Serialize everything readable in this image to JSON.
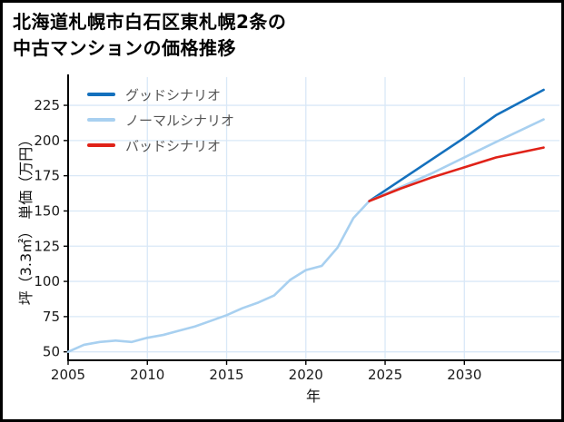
{
  "chart_data": {
    "type": "line",
    "title": "北海道札幌市白石区東札幌2条の中古マンションの価格推移",
    "title_lines": [
      "北海道札幌市白石区東札幌2条の",
      "中古マンションの価格推移"
    ],
    "xlabel": "年",
    "ylabel": "坪（3.3㎡） 単価（万円）",
    "xlim": [
      2005,
      2036
    ],
    "ylim": [
      44,
      245
    ],
    "x_ticks": [
      2005,
      2010,
      2015,
      2020,
      2025,
      2030
    ],
    "y_ticks": [
      50,
      75,
      100,
      125,
      150,
      175,
      200,
      225
    ],
    "grid": true,
    "legend_position": "top-left",
    "colors": {
      "grid": "#d9e8f7",
      "axis": "#000000"
    },
    "history": {
      "color": "#a8d0f0",
      "x": [
        2005,
        2006,
        2007,
        2008,
        2009,
        2010,
        2011,
        2012,
        2013,
        2014,
        2015,
        2016,
        2017,
        2018,
        2019,
        2020,
        2021,
        2022,
        2023,
        2024
      ],
      "values": [
        50,
        55,
        57,
        58,
        57,
        60,
        62,
        65,
        68,
        72,
        76,
        81,
        85,
        90,
        101,
        108,
        111,
        124,
        145,
        157
      ]
    },
    "series": [
      {
        "name": "グッドシナリオ",
        "color": "#1470bd",
        "x": [
          2024,
          2026,
          2028,
          2030,
          2032,
          2035
        ],
        "values": [
          157,
          172,
          187,
          202,
          218,
          236
        ]
      },
      {
        "name": "ノーマルシナリオ",
        "color": "#a8d0f0",
        "x": [
          2024,
          2026,
          2028,
          2030,
          2032,
          2035
        ],
        "values": [
          157,
          167,
          177,
          188,
          199,
          215
        ]
      },
      {
        "name": "バッドシナリオ",
        "color": "#e02218",
        "x": [
          2024,
          2026,
          2028,
          2030,
          2032,
          2035
        ],
        "values": [
          157,
          166,
          174,
          181,
          188,
          195
        ]
      }
    ]
  }
}
